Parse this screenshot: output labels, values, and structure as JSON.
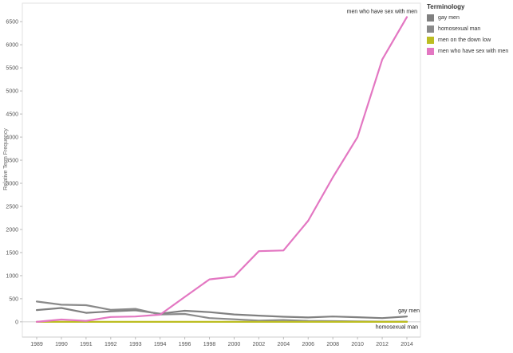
{
  "chart_data": {
    "type": "line",
    "title": "",
    "xlabel": "",
    "ylabel": "Relative Term Frequency",
    "categories": [
      "1989",
      "1990",
      "1991",
      "1992",
      "1993",
      "1994",
      "1996",
      "1998",
      "2000",
      "2002",
      "2004",
      "2006",
      "2008",
      "2010",
      "2012",
      "2014"
    ],
    "ylim": [
      -330,
      6900
    ],
    "yticks": [
      0,
      500,
      1000,
      1500,
      2000,
      2500,
      3000,
      3500,
      4000,
      4500,
      5000,
      5500,
      6000,
      6500
    ],
    "grid": false,
    "legend_position": "right",
    "legend_title": "Terminology",
    "series": [
      {
        "name": "gay men",
        "color": "#808080",
        "values": [
          255,
          300,
          195,
          225,
          250,
          175,
          240,
          210,
          160,
          135,
          110,
          95,
          115,
          100,
          80,
          115
        ]
      },
      {
        "name": "homosexual man",
        "color": "#8a8a8a",
        "values": [
          440,
          370,
          360,
          260,
          280,
          160,
          170,
          80,
          55,
          25,
          40,
          20,
          15,
          10,
          5,
          5
        ]
      },
      {
        "name": "men on the down low",
        "color": "#bcbd22",
        "values": [
          0,
          0,
          0,
          0,
          0,
          0,
          0,
          0,
          0,
          0,
          0,
          0,
          0,
          0,
          0,
          0
        ]
      },
      {
        "name": "men who have sex with men",
        "color": "#e377c2",
        "values": [
          0,
          50,
          20,
          105,
          115,
          155,
          540,
          920,
          980,
          1530,
          1545,
          2190,
          3130,
          4000,
          5680,
          6600
        ]
      }
    ],
    "annotations": [
      {
        "text": "men who have sex with men",
        "series": "men who have sex with men"
      },
      {
        "text": "gay men",
        "series": "gay men"
      },
      {
        "text": "homosexual man",
        "series": "homosexual man"
      }
    ]
  }
}
